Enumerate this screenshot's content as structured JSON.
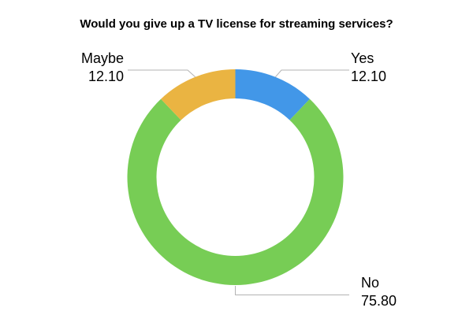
{
  "chart_data": {
    "type": "pie",
    "subtype": "donut",
    "title": "Would you give up a TV license for streaming services?",
    "categories": [
      "Yes",
      "No",
      "Maybe"
    ],
    "values": [
      12.1,
      75.8,
      12.1
    ],
    "value_labels": [
      "12.10",
      "75.80",
      "12.10"
    ],
    "colors": [
      "#4297E8",
      "#77CD55",
      "#EAB442"
    ],
    "start_angle_deg_from_top": 0,
    "direction": "clockwise",
    "inner_radius_ratio": 0.73,
    "legend": "none",
    "label_style": "outside-callout",
    "leader_line_color": "#b3b3b3",
    "text_color": "#000000",
    "background_color": "#ffffff"
  }
}
